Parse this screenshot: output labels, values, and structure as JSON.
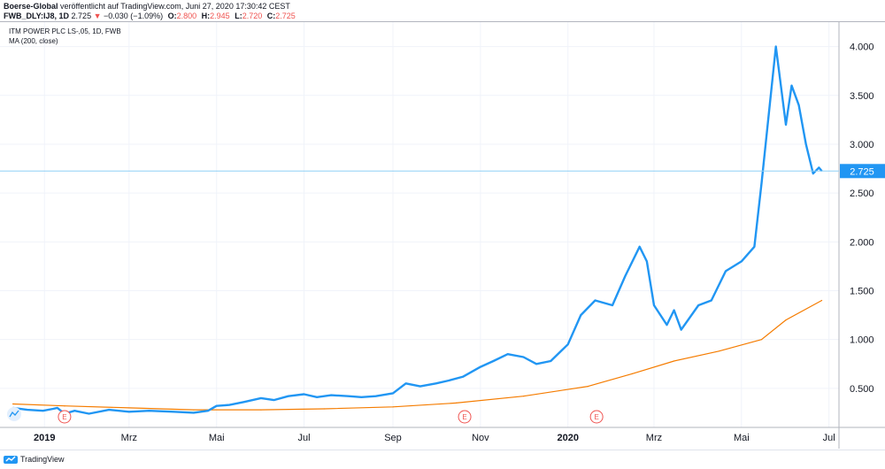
{
  "header": {
    "publisher": "Boerse-Global",
    "published_text": "veröffentlicht auf TradingView.com, Juni 27, 2020 17:30:42 CEST",
    "symbol": "FWB_DLY:IJ8, 1D",
    "last": "2.725",
    "change": "−0.030 (−1.09%)",
    "open_label": "O:",
    "open": "2.800",
    "high_label": "H:",
    "high": "2.945",
    "low_label": "L:",
    "low": "2.720",
    "close_label": "C:",
    "close": "2.725"
  },
  "legend": {
    "instrument": "ITM POWER PLC LS-,05, 1D, FWB",
    "indicator": "MA (200, close)"
  },
  "footer": {
    "brand": "TradingView"
  },
  "colors": {
    "price_line": "#2196f3",
    "ma_line": "#f57c00",
    "last_price_tag": "#2196f3",
    "earnings_marker": "#ef5350",
    "grid": "#f0f3fa"
  },
  "chart_data": {
    "type": "line",
    "title": "ITM POWER PLC LS-,05, 1D, FWB",
    "x_tick_labels": [
      "2019",
      "Mrz",
      "Mai",
      "Jul",
      "Sep",
      "Nov",
      "2020",
      "Mrz",
      "Mai",
      "Jul"
    ],
    "y_tick_labels": [
      "0.500",
      "1.000",
      "1.500",
      "2.000",
      "2.500",
      "3.000",
      "3.500",
      "4.000"
    ],
    "ylim": [
      0.1,
      4.25
    ],
    "last_value_label": "2.725",
    "earnings_markers": [
      "E",
      "E",
      "E"
    ],
    "earnings_dates": [
      "2019-01-15",
      "2019-10-21",
      "2020-01-21"
    ],
    "grid": true,
    "series": [
      {
        "name": "ITM POWER PLC LS-,05",
        "x": [
          "2018-12-10",
          "2018-12-20",
          "2018-12-31",
          "2019-01-07",
          "2019-01-10",
          "2019-01-15",
          "2019-01-22",
          "2019-02-01",
          "2019-02-15",
          "2019-03-01",
          "2019-03-15",
          "2019-04-01",
          "2019-04-15",
          "2019-04-25",
          "2019-05-01",
          "2019-05-10",
          "2019-05-20",
          "2019-06-01",
          "2019-06-10",
          "2019-06-20",
          "2019-07-01",
          "2019-07-10",
          "2019-07-20",
          "2019-08-01",
          "2019-08-10",
          "2019-08-20",
          "2019-09-01",
          "2019-09-10",
          "2019-09-20",
          "2019-10-01",
          "2019-10-10",
          "2019-10-20",
          "2019-11-01",
          "2019-11-10",
          "2019-11-20",
          "2019-12-01",
          "2019-12-10",
          "2019-12-20",
          "2020-01-01",
          "2020-01-10",
          "2020-01-20",
          "2020-02-01",
          "2020-02-10",
          "2020-02-20",
          "2020-02-25",
          "2020-03-01",
          "2020-03-10",
          "2020-03-15",
          "2020-03-20",
          "2020-04-01",
          "2020-04-10",
          "2020-04-20",
          "2020-05-01",
          "2020-05-10",
          "2020-05-15",
          "2020-05-20",
          "2020-05-25",
          "2020-06-01",
          "2020-06-05",
          "2020-06-10",
          "2020-06-15",
          "2020-06-20",
          "2020-06-24",
          "2020-06-26"
        ],
        "values": [
          0.3,
          0.28,
          0.27,
          0.29,
          0.3,
          0.24,
          0.27,
          0.24,
          0.28,
          0.26,
          0.27,
          0.26,
          0.25,
          0.27,
          0.32,
          0.33,
          0.36,
          0.4,
          0.38,
          0.42,
          0.44,
          0.41,
          0.43,
          0.42,
          0.41,
          0.42,
          0.45,
          0.55,
          0.52,
          0.55,
          0.58,
          0.62,
          0.72,
          0.78,
          0.85,
          0.82,
          0.75,
          0.78,
          0.95,
          1.25,
          1.4,
          1.35,
          1.65,
          1.95,
          1.8,
          1.35,
          1.15,
          1.3,
          1.1,
          1.35,
          1.4,
          1.7,
          1.8,
          1.95,
          2.6,
          3.3,
          4.0,
          3.2,
          3.6,
          3.4,
          3.0,
          2.7,
          2.76,
          2.725
        ]
      },
      {
        "name": "MA (200, close)",
        "x": [
          "2018-12-10",
          "2019-01-15",
          "2019-03-01",
          "2019-04-15",
          "2019-06-01",
          "2019-07-15",
          "2019-09-01",
          "2019-10-15",
          "2019-12-01",
          "2020-01-15",
          "2020-02-15",
          "2020-03-15",
          "2020-04-15",
          "2020-05-15",
          "2020-06-01",
          "2020-06-26"
        ],
        "values": [
          0.34,
          0.32,
          0.3,
          0.28,
          0.28,
          0.29,
          0.31,
          0.35,
          0.42,
          0.52,
          0.65,
          0.78,
          0.88,
          1.0,
          1.2,
          1.4
        ]
      }
    ]
  }
}
